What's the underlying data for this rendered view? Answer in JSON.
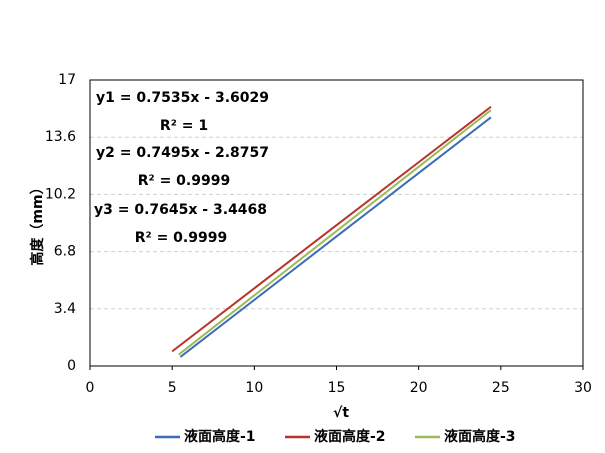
{
  "chart_data": {
    "type": "line",
    "xlabel": "√t",
    "ylabel": "高度（mm）",
    "xlim": [
      0,
      30
    ],
    "xticks": [
      0,
      5,
      10,
      15,
      20,
      25,
      30
    ],
    "ylim": [
      0,
      17
    ],
    "yticks": [
      0,
      3.4,
      6.8,
      10.2,
      13.6,
      17
    ],
    "grid": true,
    "legend": "bottom",
    "annotations": [
      "y1 = 0.7535x - 3.6029",
      "R² = 1",
      "y2 = 0.7495x - 2.8757",
      "R² = 0.9999",
      "y3 = 0.7645x - 3.4468",
      "R² = 0.9999"
    ],
    "series": [
      {
        "name": "液面高度-1",
        "color": "#3b6cb7",
        "x": [
          5.5,
          10,
          15,
          20,
          24.4
        ],
        "values": [
          0.54,
          3.93,
          7.7,
          11.47,
          14.78
        ]
      },
      {
        "name": "液面高度-2",
        "color": "#b8332b",
        "x": [
          5,
          10,
          15,
          20,
          24.4
        ],
        "values": [
          0.87,
          4.62,
          8.37,
          12.11,
          15.41
        ]
      },
      {
        "name": "液面高度-3",
        "color": "#9bbb59",
        "x": [
          5.4,
          10,
          15,
          20,
          24.4
        ],
        "values": [
          0.68,
          4.2,
          8.02,
          11.84,
          15.21
        ]
      }
    ]
  }
}
